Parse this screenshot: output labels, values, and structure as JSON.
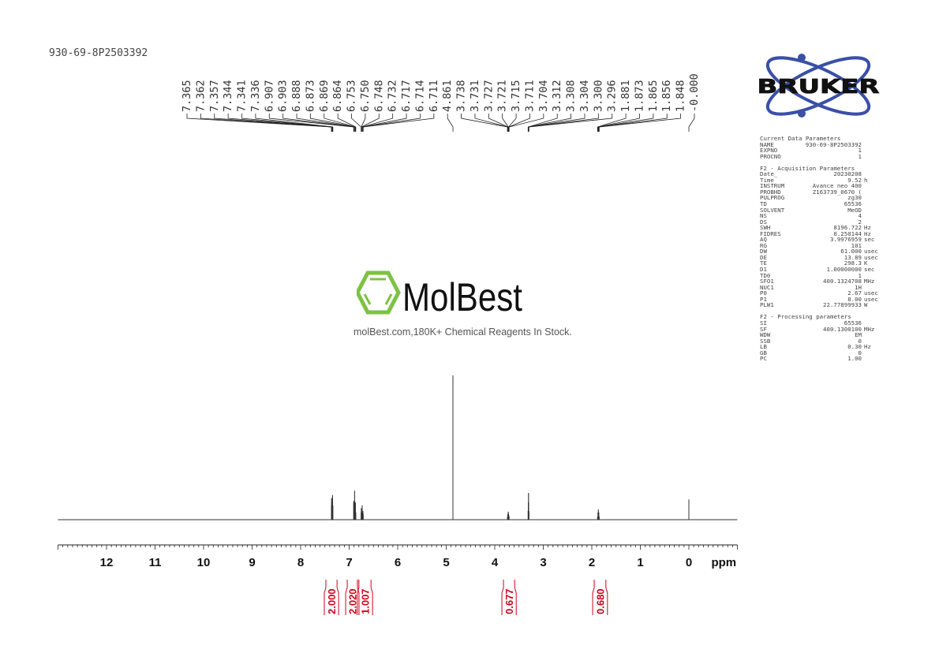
{
  "sample_id": "930-69-8P2503392",
  "watermark": {
    "brand": "MolBest",
    "tagline": "molBest.com,180K+ Chemical Reagents In Stock.",
    "color": "#7dc242"
  },
  "bruker_logo": {
    "text": "BRUKER",
    "ring_color": "#3a4fa8"
  },
  "parameters": [
    {
      "title": "Current Data Parameters",
      "rows": [
        [
          "NAME",
          "930-69-8P2503392",
          ""
        ],
        [
          "EXPNO",
          "1",
          ""
        ],
        [
          "PROCNO",
          "1",
          ""
        ]
      ]
    },
    {
      "title": "F2 - Acquisition Parameters",
      "rows": [
        [
          "Date_",
          "20230208",
          ""
        ],
        [
          "Time",
          "9.52",
          "h"
        ],
        [
          "INSTRUM",
          "Avance neo 400",
          ""
        ],
        [
          "PROBHD",
          "Z163739_0670 (",
          ""
        ],
        [
          "PULPROG",
          "zg30",
          ""
        ],
        [
          "TD",
          "65536",
          ""
        ],
        [
          "SOLVENT",
          "MeOD",
          ""
        ],
        [
          "NS",
          "4",
          ""
        ],
        [
          "DS",
          "2",
          ""
        ],
        [
          "SWH",
          "8196.722",
          "Hz"
        ],
        [
          "FIDRES",
          "0.250144",
          "Hz"
        ],
        [
          "AQ",
          "3.9976959",
          "sec"
        ],
        [
          "RG",
          "101",
          ""
        ],
        [
          "DW",
          "61.000",
          "usec"
        ],
        [
          "DE",
          "13.89",
          "usec"
        ],
        [
          "TE",
          "298.3",
          "K"
        ],
        [
          "D1",
          "1.00000000",
          "sec"
        ],
        [
          "TD0",
          "1",
          ""
        ],
        [
          "SFO1",
          "400.1324708",
          "MHz"
        ],
        [
          "NUC1",
          "1H",
          ""
        ],
        [
          "P0",
          "2.67",
          "usec"
        ],
        [
          "P1",
          "8.00",
          "usec"
        ],
        [
          "PLW1",
          "22.77899933",
          "W"
        ]
      ]
    },
    {
      "title": "F2 - Processing parameters",
      "rows": [
        [
          "SI",
          "65536",
          ""
        ],
        [
          "SF",
          "400.1300100",
          "MHz"
        ],
        [
          "WDW",
          "EM",
          ""
        ],
        [
          "SSB",
          "0",
          ""
        ],
        [
          "LB",
          "0.30",
          "Hz"
        ],
        [
          "GB",
          "0",
          ""
        ],
        [
          "PC",
          "1.00",
          ""
        ]
      ]
    }
  ],
  "chart_data": {
    "type": "line",
    "xlabel": "ppm",
    "xlim": [
      13.0,
      -1.0
    ],
    "x_reversed": true,
    "x_ticks": [
      "12",
      "11",
      "10",
      "9",
      "8",
      "7",
      "6",
      "5",
      "4",
      "3",
      "2",
      "1",
      "0"
    ],
    "ylabel": "",
    "grid": false,
    "peak_labels": [
      "7.365",
      "7.362",
      "7.357",
      "7.344",
      "7.341",
      "7.336",
      "6.907",
      "6.903",
      "6.888",
      "6.873",
      "6.869",
      "6.864",
      "6.753",
      "6.750",
      "6.748",
      "6.732",
      "6.717",
      "6.714",
      "6.711",
      "4.861",
      "3.738",
      "3.731",
      "3.727",
      "3.721",
      "3.715",
      "3.711",
      "3.704",
      "3.312",
      "3.308",
      "3.304",
      "3.300",
      "3.296",
      "1.881",
      "1.873",
      "1.865",
      "1.856",
      "1.848",
      "-0.000"
    ],
    "peaks": [
      {
        "ppm": 7.365,
        "intensity": 0.1
      },
      {
        "ppm": 7.362,
        "intensity": 0.15
      },
      {
        "ppm": 7.357,
        "intensity": 0.12
      },
      {
        "ppm": 7.344,
        "intensity": 0.15
      },
      {
        "ppm": 7.341,
        "intensity": 0.17
      },
      {
        "ppm": 7.336,
        "intensity": 0.1
      },
      {
        "ppm": 6.907,
        "intensity": 0.12
      },
      {
        "ppm": 6.903,
        "intensity": 0.13
      },
      {
        "ppm": 6.888,
        "intensity": 0.2
      },
      {
        "ppm": 6.873,
        "intensity": 0.12
      },
      {
        "ppm": 6.869,
        "intensity": 0.11
      },
      {
        "ppm": 6.864,
        "intensity": 0.05
      },
      {
        "ppm": 6.753,
        "intensity": 0.05
      },
      {
        "ppm": 6.75,
        "intensity": 0.08
      },
      {
        "ppm": 6.748,
        "intensity": 0.07
      },
      {
        "ppm": 6.732,
        "intensity": 0.1
      },
      {
        "ppm": 6.717,
        "intensity": 0.06
      },
      {
        "ppm": 6.714,
        "intensity": 0.05
      },
      {
        "ppm": 6.711,
        "intensity": 0.04
      },
      {
        "ppm": 4.861,
        "intensity": 1.0
      },
      {
        "ppm": 3.738,
        "intensity": 0.02
      },
      {
        "ppm": 3.731,
        "intensity": 0.04
      },
      {
        "ppm": 3.727,
        "intensity": 0.04
      },
      {
        "ppm": 3.721,
        "intensity": 0.055
      },
      {
        "ppm": 3.715,
        "intensity": 0.04
      },
      {
        "ppm": 3.711,
        "intensity": 0.03
      },
      {
        "ppm": 3.704,
        "intensity": 0.02
      },
      {
        "ppm": 3.312,
        "intensity": 0.06
      },
      {
        "ppm": 3.308,
        "intensity": 0.12
      },
      {
        "ppm": 3.304,
        "intensity": 0.185
      },
      {
        "ppm": 3.3,
        "intensity": 0.12
      },
      {
        "ppm": 3.296,
        "intensity": 0.06
      },
      {
        "ppm": 1.881,
        "intensity": 0.02
      },
      {
        "ppm": 1.873,
        "intensity": 0.05
      },
      {
        "ppm": 1.865,
        "intensity": 0.07
      },
      {
        "ppm": 1.856,
        "intensity": 0.05
      },
      {
        "ppm": 1.848,
        "intensity": 0.02
      },
      {
        "ppm": 0.0,
        "intensity": 0.14
      }
    ],
    "integrals": [
      {
        "from": 7.48,
        "to": 7.25,
        "value": "2.000"
      },
      {
        "from": 7.04,
        "to": 6.83,
        "value": "2.020"
      },
      {
        "from": 6.8,
        "to": 6.55,
        "value": "1.007"
      },
      {
        "from": 3.82,
        "to": 3.59,
        "value": "0.677"
      },
      {
        "from": 1.95,
        "to": 1.71,
        "value": "0.680"
      }
    ],
    "integral_color": "#d0021b"
  }
}
